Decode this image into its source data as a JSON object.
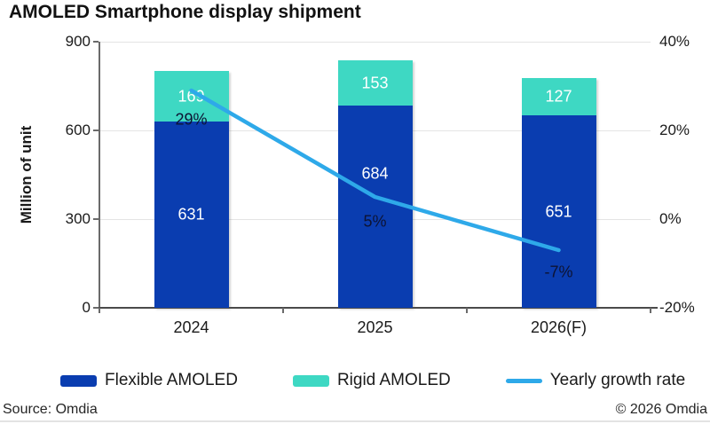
{
  "chart_data": {
    "type": "bar",
    "stacked": true,
    "title": "AMOLED Smartphone display shipment",
    "ylabel": "Million of unit",
    "categories": [
      "2024",
      "2025",
      "2026(F)"
    ],
    "series": [
      {
        "name": "Flexible AMOLED",
        "type": "bar",
        "values": [
          631,
          684,
          651
        ],
        "color": "#0a3db0",
        "label_color": "#ffffff"
      },
      {
        "name": "Rigid AMOLED",
        "type": "bar",
        "values": [
          169,
          153,
          127
        ],
        "color": "#3ed8c3",
        "label_color": "#ffffff"
      },
      {
        "name": "Yearly growth rate",
        "type": "line",
        "axis": "right",
        "values": [
          29,
          5,
          -7
        ],
        "labels": [
          "29%",
          "5%",
          "-7%"
        ],
        "color": "#2ea9e9",
        "label_color": "#0d1333"
      }
    ],
    "left_axis": {
      "min": 0,
      "max": 900,
      "tick_values": [
        0,
        300,
        600,
        900
      ],
      "tick_labels": [
        "0",
        "300",
        "600",
        "900"
      ]
    },
    "right_axis": {
      "min": -20,
      "max": 40,
      "tick_values": [
        -20,
        0,
        20,
        40
      ],
      "tick_labels": [
        "-20%",
        "0%",
        "20%",
        "40%"
      ]
    },
    "grid": true,
    "legend_position": "bottom",
    "layout_hints": {
      "flexible_label_dy": [
        0,
        -37,
        0
      ],
      "growth_label_dy": [
        33,
        28,
        25
      ]
    }
  },
  "footer": {
    "source": "Source: Omdia",
    "copyright": "© 2026 Omdia"
  }
}
